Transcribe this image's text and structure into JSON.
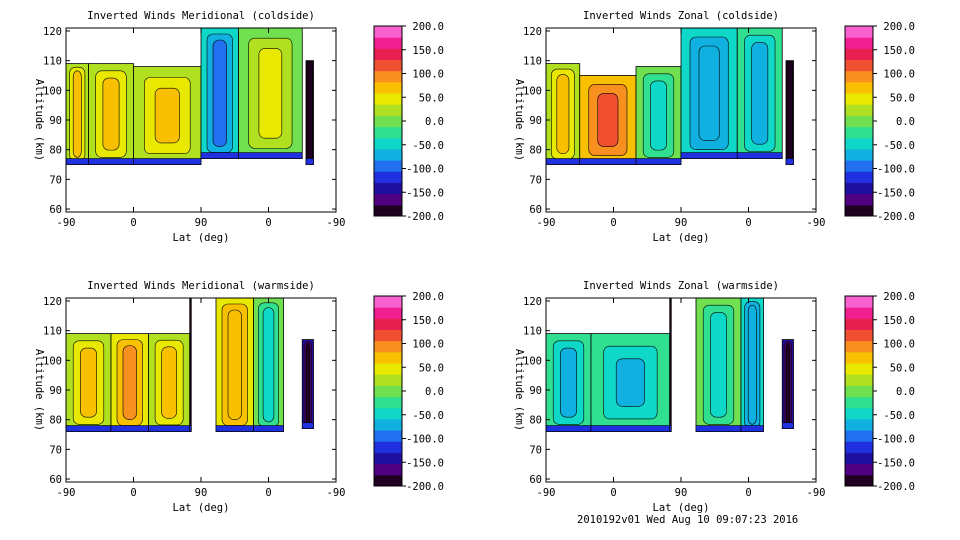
{
  "chart_data": [
    {
      "type": "heatmap",
      "title": "Inverted Winds Meridional (coldside)",
      "xlabel": "Lat (deg)",
      "ylabel": "Altitude (km)",
      "x_ticks": [
        "-90",
        "0",
        "90",
        "0",
        "-90"
      ],
      "y_ticks": [
        60,
        70,
        80,
        90,
        100,
        110,
        120
      ],
      "ylim": [
        59,
        121
      ],
      "pole_at_x": 90,
      "segments": [
        {
          "x_from": -90,
          "x_to": -60,
          "alt_from": 75,
          "alt_to": 109,
          "mean_wind": 30
        },
        {
          "x_from": -60,
          "x_to": 0,
          "alt_from": 75,
          "alt_to": 109,
          "mean_wind": 35
        },
        {
          "x_from": 0,
          "x_to": 90,
          "alt_from": 75,
          "alt_to": 108,
          "mean_wind": 25
        },
        {
          "x_from": 90,
          "x_to": 140,
          "alt_from": 77,
          "alt_to": 121,
          "mean_wind": -50
        },
        {
          "x_from": 140,
          "x_to": 225,
          "alt_from": 77,
          "alt_to": 121,
          "mean_wind": 10
        },
        {
          "x_from": 230,
          "x_to": 240,
          "alt_from": 75,
          "alt_to": 110,
          "mean_wind": -180
        }
      ],
      "colorbar": {
        "min": -200,
        "max": 200,
        "ticks": [
          "200.0",
          "150.0",
          "100.0",
          "50.0",
          "0.0",
          "-50.0",
          "-100.0",
          "-150.0",
          "-200.0"
        ]
      }
    },
    {
      "type": "heatmap",
      "title": "Inverted Winds Zonal (coldside)",
      "xlabel": "Lat (deg)",
      "ylabel": "Altitude (km)",
      "x_ticks": [
        "-90",
        "0",
        "90",
        "0",
        "-90"
      ],
      "y_ticks": [
        60,
        70,
        80,
        90,
        100,
        110,
        120
      ],
      "ylim": [
        59,
        121
      ],
      "pole_at_x": 90,
      "segments": [
        {
          "x_from": -90,
          "x_to": -45,
          "alt_from": 75,
          "alt_to": 109,
          "mean_wind": 20
        },
        {
          "x_from": -45,
          "x_to": 30,
          "alt_from": 75,
          "alt_to": 105,
          "mean_wind": 70
        },
        {
          "x_from": 30,
          "x_to": 90,
          "alt_from": 75,
          "alt_to": 108,
          "mean_wind": -10
        },
        {
          "x_from": 90,
          "x_to": 165,
          "alt_from": 77,
          "alt_to": 121,
          "mean_wind": -40
        },
        {
          "x_from": 165,
          "x_to": 225,
          "alt_from": 77,
          "alt_to": 121,
          "mean_wind": -20
        },
        {
          "x_from": 230,
          "x_to": 240,
          "alt_from": 75,
          "alt_to": 110,
          "mean_wind": -180
        }
      ],
      "colorbar": {
        "min": -200,
        "max": 200,
        "ticks": [
          "200.0",
          "150.0",
          "100.0",
          "50.0",
          "0.0",
          "-50.0",
          "-100.0",
          "-150.0",
          "-200.0"
        ]
      }
    },
    {
      "type": "heatmap",
      "title": "Inverted Winds Meridional (warmside)",
      "xlabel": "Lat (deg)",
      "ylabel": "Altitude (km)",
      "x_ticks": [
        "-90",
        "0",
        "90",
        "0",
        "-90"
      ],
      "y_ticks": [
        60,
        70,
        80,
        90,
        100,
        110,
        120
      ],
      "ylim": [
        59,
        121
      ],
      "pole_at_x": 90,
      "segments": [
        {
          "x_from": -90,
          "x_to": -30,
          "alt_from": 76,
          "alt_to": 109,
          "mean_wind": 20
        },
        {
          "x_from": -30,
          "x_to": 20,
          "alt_from": 76,
          "alt_to": 109,
          "mean_wind": 55
        },
        {
          "x_from": 20,
          "x_to": 75,
          "alt_from": 76,
          "alt_to": 109,
          "mean_wind": 25
        },
        {
          "x_from": 75,
          "x_to": 77,
          "alt_from": 76,
          "alt_to": 121,
          "mean_wind": -200
        },
        {
          "x_from": 110,
          "x_to": 160,
          "alt_from": 76,
          "alt_to": 121,
          "mean_wind": 40
        },
        {
          "x_from": 160,
          "x_to": 200,
          "alt_from": 76,
          "alt_to": 121,
          "mean_wind": -10
        },
        {
          "x_from": 225,
          "x_to": 240,
          "alt_from": 77,
          "alt_to": 107,
          "mean_wind": -150
        }
      ],
      "colorbar": {
        "min": -200,
        "max": 200,
        "ticks": [
          "200.0",
          "150.0",
          "100.0",
          "50.0",
          "0.0",
          "-50.0",
          "-100.0",
          "-150.0",
          "-200.0"
        ]
      }
    },
    {
      "type": "heatmap",
      "title": "Inverted Winds Zonal (warmside)",
      "xlabel": "Lat (deg)",
      "ylabel": "Altitude (km)",
      "x_ticks": [
        "-90",
        "0",
        "90",
        "0",
        "-90"
      ],
      "y_ticks": [
        60,
        70,
        80,
        90,
        100,
        110,
        120
      ],
      "ylim": [
        59,
        121
      ],
      "pole_at_x": 90,
      "segments": [
        {
          "x_from": -90,
          "x_to": -30,
          "alt_from": 76,
          "alt_to": 109,
          "mean_wind": -30
        },
        {
          "x_from": -30,
          "x_to": 75,
          "alt_from": 76,
          "alt_to": 109,
          "mean_wind": -20
        },
        {
          "x_from": 75,
          "x_to": 77,
          "alt_from": 76,
          "alt_to": 121,
          "mean_wind": -200
        },
        {
          "x_from": 110,
          "x_to": 170,
          "alt_from": 76,
          "alt_to": 121,
          "mean_wind": -10
        },
        {
          "x_from": 170,
          "x_to": 200,
          "alt_from": 76,
          "alt_to": 121,
          "mean_wind": -40
        },
        {
          "x_from": 225,
          "x_to": 240,
          "alt_from": 77,
          "alt_to": 107,
          "mean_wind": -150
        }
      ],
      "colorbar": {
        "min": -200,
        "max": 200,
        "ticks": [
          "200.0",
          "150.0",
          "100.0",
          "50.0",
          "0.0",
          "-50.0",
          "-100.0",
          "-150.0",
          "-200.0"
        ]
      }
    }
  ],
  "colormap": [
    "#200020",
    "#500080",
    "#2010a0",
    "#2030e0",
    "#2070f0",
    "#10b0e0",
    "#10d8c8",
    "#30e090",
    "#70e050",
    "#b0e020",
    "#e8e800",
    "#f8c000",
    "#f89020",
    "#f05030",
    "#e82050",
    "#f02090",
    "#f860d0"
  ],
  "footer": "2010192v01 Wed Aug 10 09:07:23 2016"
}
